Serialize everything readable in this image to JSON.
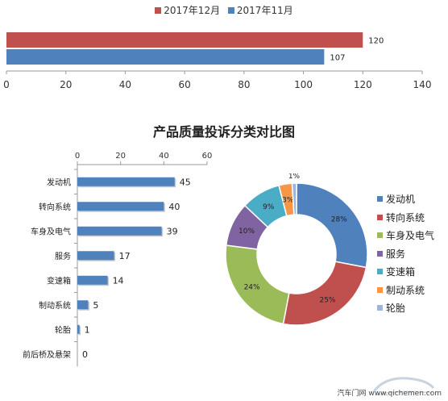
{
  "chart_data": [
    {
      "type": "bar",
      "orientation": "horizontal",
      "categories": [
        ""
      ],
      "series": [
        {
          "name": "2017年12月",
          "values": [
            120
          ],
          "color": "#C0504D"
        },
        {
          "name": "2017年11月",
          "values": [
            107
          ],
          "color": "#4F81BD"
        }
      ],
      "xlim": [
        0,
        140
      ],
      "xticks": [
        0,
        20,
        40,
        60,
        80,
        100,
        120,
        140
      ],
      "legend": "top",
      "grid": false
    },
    {
      "type": "bar",
      "orientation": "horizontal",
      "title": "产品质量投诉分类对比图",
      "categories": [
        "发动机",
        "转向系统",
        "车身及电气",
        "服务",
        "变速箱",
        "制动系统",
        "轮胎",
        "前后桥及悬架"
      ],
      "values": [
        45,
        40,
        39,
        17,
        14,
        5,
        1,
        0
      ],
      "xlim": [
        0,
        60
      ],
      "xticks": [
        0,
        20,
        40,
        60
      ],
      "axis_position": "top",
      "color": "#4F81BD",
      "grid": false
    },
    {
      "type": "pie",
      "donut": true,
      "labels": [
        "发动机",
        "转向系统",
        "车身及电气",
        "服务",
        "变速箱",
        "制动系统",
        "轮胎"
      ],
      "values": [
        28,
        25,
        24,
        10,
        9,
        3,
        1
      ],
      "value_labels": [
        "28%",
        "25%",
        "24%",
        "10%",
        "9%",
        "3%",
        "1%"
      ],
      "colors": [
        "#4F81BD",
        "#C0504D",
        "#9BBB59",
        "#8064A2",
        "#4BACC6",
        "#F79646",
        "#9DB5D9"
      ],
      "legend": "right"
    }
  ],
  "footer": {
    "source": "汽车门网 www.qichemen.com"
  }
}
